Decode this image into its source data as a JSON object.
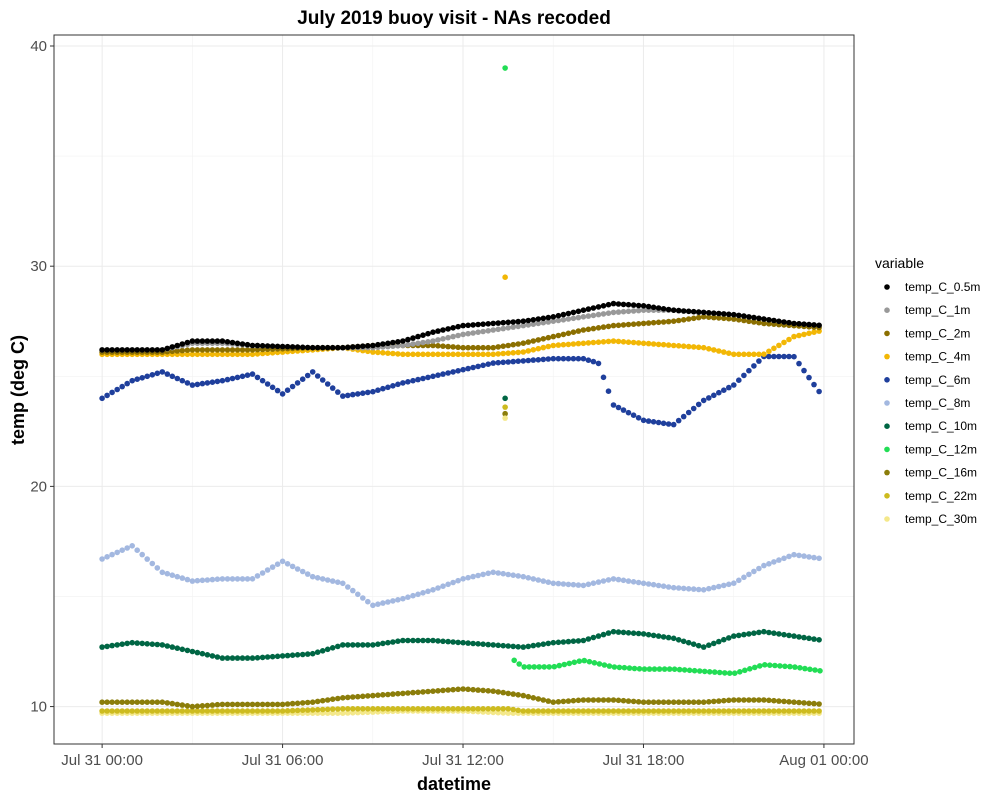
{
  "chart_data": {
    "type": "scatter",
    "title": "July 2019 buoy visit - NAs recoded",
    "xlabel": "datetime",
    "ylabel": "temp (deg C)",
    "x_unit": "hours since Jul 31 00:00",
    "xlim": [
      -1.6,
      25.0
    ],
    "ylim": [
      8.3,
      40.5
    ],
    "x_ticks": [
      {
        "value": 0,
        "label": "Jul 31 00:00"
      },
      {
        "value": 6,
        "label": "Jul 31 06:00"
      },
      {
        "value": 12,
        "label": "Jul 31 12:00"
      },
      {
        "value": 18,
        "label": "Jul 31 18:00"
      },
      {
        "value": 24,
        "label": "Aug 01 00:00"
      }
    ],
    "y_ticks": [
      10,
      20,
      30,
      40
    ],
    "grid": true,
    "legend_title": "variable",
    "legend_position": "right",
    "sample_interval_hours": 0.1667,
    "time_range": [
      0,
      24
    ],
    "series": [
      {
        "name": "temp_C_0.5m",
        "color": "#000000",
        "x": [
          0,
          2,
          3,
          4,
          5,
          7,
          8,
          9,
          10,
          11,
          12,
          13,
          14,
          15,
          16,
          17,
          18,
          19,
          20,
          21,
          22,
          23,
          24
        ],
        "y": [
          26.2,
          26.2,
          26.6,
          26.6,
          26.4,
          26.3,
          26.3,
          26.4,
          26.6,
          27.0,
          27.3,
          27.4,
          27.5,
          27.7,
          28.0,
          28.3,
          28.2,
          28.0,
          27.9,
          27.8,
          27.6,
          27.4,
          27.3
        ]
      },
      {
        "name": "temp_C_1m",
        "color": "#999999",
        "x": [
          0,
          2,
          3,
          4,
          5,
          7,
          8,
          9,
          10,
          11,
          12,
          13,
          14,
          15,
          16,
          17,
          18,
          19,
          20,
          21,
          22,
          23,
          24
        ],
        "y": [
          26.2,
          26.2,
          26.5,
          26.5,
          26.4,
          26.3,
          26.3,
          26.3,
          26.4,
          26.6,
          26.9,
          27.1,
          27.3,
          27.5,
          27.7,
          27.9,
          28.0,
          28.0,
          27.9,
          27.8,
          27.6,
          27.4,
          27.3
        ]
      },
      {
        "name": "temp_C_2m",
        "color": "#8b6f00",
        "x": [
          0,
          2,
          3,
          4,
          5,
          7,
          8,
          9,
          10,
          11,
          12,
          13,
          14,
          15,
          16,
          17,
          18,
          19,
          20,
          21,
          22,
          23,
          24
        ],
        "y": [
          26.1,
          26.1,
          26.2,
          26.2,
          26.2,
          26.3,
          26.3,
          26.4,
          26.4,
          26.4,
          26.3,
          26.3,
          26.5,
          26.8,
          27.1,
          27.3,
          27.4,
          27.5,
          27.7,
          27.6,
          27.4,
          27.3,
          27.2
        ]
      },
      {
        "name": "temp_C_4m",
        "color": "#f2b705",
        "x": [
          0,
          2,
          3,
          4,
          5,
          7,
          8,
          9,
          10,
          11,
          12,
          13,
          14,
          15,
          16,
          17,
          18,
          19,
          20,
          21,
          22,
          23,
          24
        ],
        "y": [
          26.0,
          26.0,
          26.0,
          26.0,
          26.0,
          26.2,
          26.3,
          26.1,
          26.0,
          26.0,
          26.0,
          26.0,
          26.1,
          26.4,
          26.5,
          26.6,
          26.5,
          26.4,
          26.3,
          26.0,
          26.0,
          26.8,
          27.1
        ]
      },
      {
        "name": "temp_C_6m",
        "color": "#1f3f9c",
        "x": [
          0,
          1,
          2,
          3,
          4,
          5,
          6,
          7,
          8,
          9,
          10,
          11,
          12,
          13,
          14,
          15,
          16,
          16.5,
          17,
          18,
          19,
          20,
          21,
          22,
          23,
          24
        ],
        "y": [
          24.0,
          24.8,
          25.2,
          24.6,
          24.8,
          25.1,
          24.2,
          25.2,
          24.1,
          24.3,
          24.7,
          25.0,
          25.3,
          25.6,
          25.7,
          25.8,
          25.8,
          25.6,
          23.7,
          23.0,
          22.8,
          23.9,
          24.6,
          25.9,
          25.9,
          24.0
        ]
      },
      {
        "name": "temp_C_8m",
        "color": "#a3b8e0",
        "x": [
          0,
          1,
          2,
          3,
          4,
          5,
          6,
          7,
          8,
          9,
          10,
          11,
          12,
          13,
          14,
          15,
          16,
          17,
          18,
          19,
          20,
          21,
          22,
          23,
          24
        ],
        "y": [
          16.7,
          17.3,
          16.1,
          15.7,
          15.8,
          15.8,
          16.6,
          15.9,
          15.6,
          14.6,
          14.9,
          15.3,
          15.8,
          16.1,
          15.9,
          15.6,
          15.5,
          15.8,
          15.6,
          15.4,
          15.3,
          15.6,
          16.4,
          16.9,
          16.7
        ]
      },
      {
        "name": "temp_C_10m",
        "color": "#006644",
        "x": [
          0,
          1,
          2,
          3,
          4,
          5,
          6,
          7,
          8,
          9,
          10,
          11,
          12,
          13,
          14,
          15,
          16,
          17,
          18,
          19,
          20,
          21,
          22,
          23,
          24
        ],
        "y": [
          12.7,
          12.9,
          12.8,
          12.5,
          12.2,
          12.2,
          12.3,
          12.4,
          12.8,
          12.8,
          13.0,
          13.0,
          12.9,
          12.8,
          12.7,
          12.9,
          13.0,
          13.4,
          13.3,
          13.1,
          12.7,
          13.2,
          13.4,
          13.2,
          13.0
        ]
      },
      {
        "name": "temp_C_12m",
        "color": "#22dd55",
        "x": [
          13.7,
          14,
          15,
          16,
          17,
          18,
          19,
          20,
          21,
          22,
          23,
          24
        ],
        "y": [
          12.1,
          11.8,
          11.8,
          12.1,
          11.8,
          11.7,
          11.7,
          11.6,
          11.5,
          11.9,
          11.8,
          11.6
        ]
      },
      {
        "name": "temp_C_16m",
        "color": "#8b7d0a",
        "x": [
          0,
          1,
          2,
          3,
          4,
          5,
          6,
          7,
          8,
          9,
          10,
          11,
          12,
          13,
          14,
          15,
          16,
          17,
          18,
          19,
          20,
          21,
          22,
          23,
          24
        ],
        "y": [
          10.2,
          10.2,
          10.2,
          10.0,
          10.1,
          10.1,
          10.1,
          10.2,
          10.4,
          10.5,
          10.6,
          10.7,
          10.8,
          10.7,
          10.5,
          10.2,
          10.3,
          10.3,
          10.2,
          10.2,
          10.2,
          10.3,
          10.3,
          10.2,
          10.1
        ]
      },
      {
        "name": "temp_C_22m",
        "color": "#cdbb1f",
        "x": [
          0,
          2,
          4,
          6,
          8,
          10,
          12,
          13.5,
          14,
          16,
          18,
          20,
          22,
          24
        ],
        "y": [
          9.8,
          9.8,
          9.8,
          9.8,
          9.9,
          9.9,
          9.9,
          9.9,
          9.8,
          9.8,
          9.8,
          9.8,
          9.8,
          9.8
        ]
      },
      {
        "name": "temp_C_30m",
        "color": "#f4e88a",
        "x": [
          0,
          2,
          4,
          6,
          8,
          10,
          12,
          13.5,
          14,
          16,
          18,
          20,
          22,
          24
        ],
        "y": [
          9.7,
          9.7,
          9.7,
          9.7,
          9.7,
          9.8,
          9.8,
          9.7,
          9.7,
          9.7,
          9.7,
          9.7,
          9.7,
          9.7
        ]
      }
    ],
    "spot_points": [
      {
        "series": "temp_C_12m",
        "x": 13.4,
        "y": 39.0
      },
      {
        "series": "temp_C_4m",
        "x": 13.4,
        "y": 29.5
      },
      {
        "series": "temp_C_10m",
        "x": 13.4,
        "y": 24.0
      },
      {
        "series": "temp_C_22m",
        "x": 13.4,
        "y": 23.6
      },
      {
        "series": "temp_C_16m",
        "x": 13.4,
        "y": 23.3
      },
      {
        "series": "temp_C_30m",
        "x": 13.4,
        "y": 23.1
      }
    ]
  }
}
